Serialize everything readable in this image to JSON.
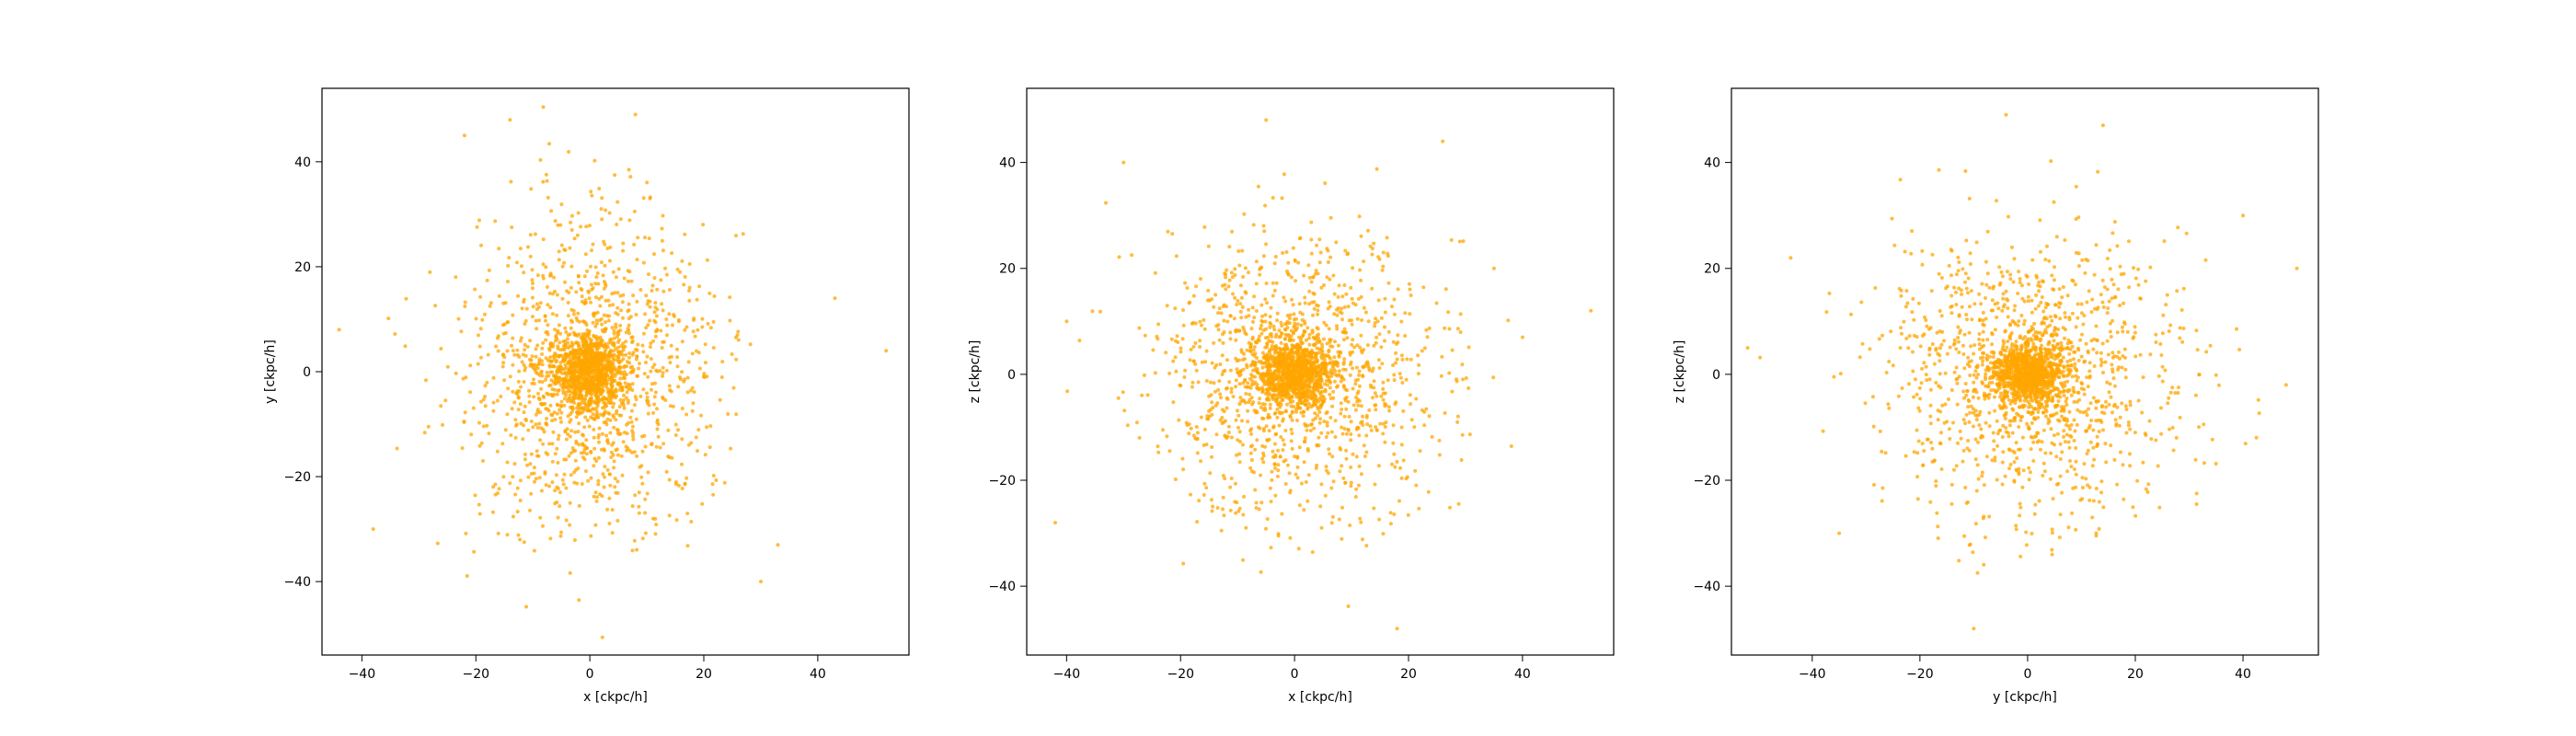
{
  "figure": {
    "background": "#ffffff",
    "point_color": "#ffa500"
  },
  "chart_data": [
    {
      "type": "scatter",
      "title": "",
      "xlabel": "x [ckpc/h]",
      "ylabel": "y [ckpc/h]",
      "xlim": [
        -47,
        56
      ],
      "ylim": [
        -54,
        54
      ],
      "xticks": [
        -40,
        -20,
        0,
        20,
        40
      ],
      "yticks": [
        -40,
        -20,
        0,
        20,
        40
      ],
      "xtick_labels": [
        "−40",
        "−20",
        "0",
        "20",
        "40"
      ],
      "ytick_labels": [
        "−40",
        "−20",
        "0",
        "20",
        "40"
      ],
      "grid": false,
      "point_count": 2200,
      "core_sigma": [
        3.2,
        3.6
      ],
      "halo_sigma": [
        11,
        15
      ],
      "outlier_points": [
        [
          52,
          4
        ],
        [
          -38,
          -30
        ],
        [
          -44,
          8
        ],
        [
          30,
          -40
        ],
        [
          -14,
          48
        ],
        [
          8,
          49
        ],
        [
          43,
          14
        ],
        [
          -22,
          45
        ],
        [
          33,
          -33
        ]
      ]
    },
    {
      "type": "scatter",
      "title": "",
      "xlabel": "x [ckpc/h]",
      "ylabel": "z [ckpc/h]",
      "xlim": [
        -47,
        56
      ],
      "ylim": [
        -53,
        54
      ],
      "xticks": [
        -40,
        -20,
        0,
        20,
        40
      ],
      "yticks": [
        -40,
        -20,
        0,
        20,
        40
      ],
      "xtick_labels": [
        "−40",
        "−20",
        "0",
        "20",
        "40"
      ],
      "ytick_labels": [
        "−40",
        "−20",
        "0",
        "20",
        "40"
      ],
      "grid": false,
      "point_count": 2200,
      "core_sigma": [
        3.5,
        3.2
      ],
      "halo_sigma": [
        12,
        13
      ],
      "outlier_points": [
        [
          52,
          12
        ],
        [
          -42,
          -28
        ],
        [
          -30,
          40
        ],
        [
          18,
          -48
        ],
        [
          -5,
          48
        ],
        [
          40,
          7
        ],
        [
          35,
          20
        ],
        [
          -40,
          10
        ],
        [
          26,
          44
        ]
      ]
    },
    {
      "type": "scatter",
      "title": "",
      "xlabel": "y [ckpc/h]",
      "ylabel": "z [ckpc/h]",
      "xlim": [
        -55,
        54
      ],
      "ylim": [
        -53,
        54
      ],
      "xticks": [
        -40,
        -20,
        0,
        20,
        40
      ],
      "yticks": [
        -40,
        -20,
        0,
        20,
        40
      ],
      "xtick_labels": [
        "−40",
        "−20",
        "0",
        "20",
        "40"
      ],
      "ytick_labels": [
        "−40",
        "−20",
        "0",
        "20",
        "40"
      ],
      "grid": false,
      "point_count": 2200,
      "core_sigma": [
        3.4,
        3.0
      ],
      "halo_sigma": [
        14,
        13
      ],
      "outlier_points": [
        [
          -52,
          5
        ],
        [
          -44,
          22
        ],
        [
          50,
          20
        ],
        [
          -4,
          49
        ],
        [
          -10,
          -48
        ],
        [
          48,
          -2
        ],
        [
          40,
          30
        ],
        [
          -35,
          -30
        ],
        [
          14,
          47
        ]
      ]
    }
  ]
}
